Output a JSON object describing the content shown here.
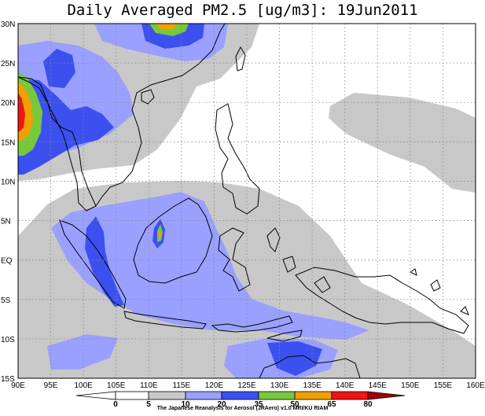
{
  "title": "Daily Averaged PM2.5 [ug/m3]: 19Jun2011",
  "credit": "The Japanese Reanalysis for Aerosol (JRAero) v1.0 MRI/KU RIAM",
  "map": {
    "lon_range": [
      90,
      160
    ],
    "lat_range": [
      -15,
      30
    ],
    "x_ticks": [
      "90E",
      "95E",
      "100E",
      "105E",
      "110E",
      "115E",
      "120E",
      "125E",
      "130E",
      "135E",
      "140E",
      "145E",
      "150E",
      "155E",
      "160E"
    ],
    "y_ticks": [
      "30N",
      "25N",
      "20N",
      "15N",
      "10N",
      "5N",
      "EQ",
      "5S",
      "10S",
      "15S"
    ],
    "gridlines": "dotted"
  },
  "colorbar": {
    "levels": [
      "0",
      "5",
      "10",
      "20",
      "35",
      "50",
      "65",
      "80"
    ],
    "colors": [
      "#ffffff",
      "#ffffff",
      "#c8c8c8",
      "#9aa0ff",
      "#3c50f0",
      "#78c83c",
      "#f0a000",
      "#f01414",
      "#a00000"
    ]
  },
  "colors": {
    "land_outline": "#000000",
    "pm_10_20": "#c8c8c8",
    "pm_20_35": "#9aa0ff",
    "pm_35_50": "#3c50f0",
    "pm_50_65": "#78c83c",
    "pm_65_80": "#f0a000",
    "pm_80_plus": "#f01414"
  }
}
